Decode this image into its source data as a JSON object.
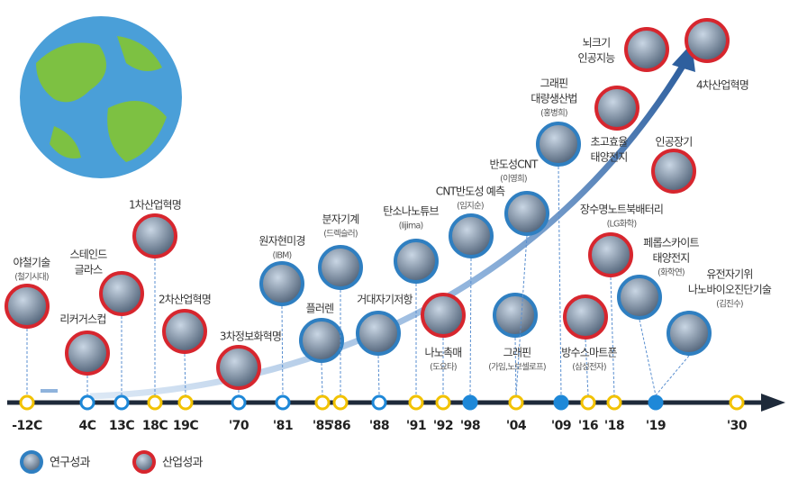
{
  "timeline": {
    "ticks": [
      "-12C",
      "4C",
      "13C",
      "18C",
      "19C",
      "'70",
      "'81",
      "'85",
      "'86",
      "'88",
      "'91",
      "'92",
      "'98",
      "'04",
      "'09",
      "'16",
      "'18",
      "'19",
      "'30"
    ]
  },
  "events": [
    {
      "label": [
        "야철기술"
      ],
      "sub": "(철기시대)"
    },
    {
      "label": [
        "리커거스컵"
      ]
    },
    {
      "label": [
        "스테인드",
        "글라스"
      ]
    },
    {
      "label": [
        "1차산업혁명"
      ]
    },
    {
      "label": [
        "2차산업혁명"
      ]
    },
    {
      "label": [
        "3차정보화혁명"
      ]
    },
    {
      "label": [
        "원자현미경"
      ],
      "sub": "(IBM)"
    },
    {
      "label": [
        "플러렌"
      ]
    },
    {
      "label": [
        "분자기계"
      ],
      "sub": "(드렉슬러)"
    },
    {
      "label": [
        "거대자기저항"
      ]
    },
    {
      "label": [
        "탄소나노튜브"
      ],
      "sub": "(Iijima)"
    },
    {
      "label": [
        "나노촉매"
      ],
      "sub": "(도요타)"
    },
    {
      "label": [
        "CNT반도성 예측"
      ],
      "sub": "(임지순)"
    },
    {
      "label": [
        "그래핀"
      ],
      "sub": "(가임,노보셀로프)"
    },
    {
      "label": [
        "반도성CNT"
      ],
      "sub": "(이영희)"
    },
    {
      "label": [
        "그래핀",
        "대량생산법"
      ],
      "sub": "(홍병희)"
    },
    {
      "label": [
        "방수스마트폰"
      ],
      "sub": "(삼성전자)"
    },
    {
      "label": [
        "장수명노트북배터리"
      ],
      "sub": "(LG화학)"
    },
    {
      "label": [
        "초고효율",
        "태양전지"
      ]
    },
    {
      "label": [
        "페롭스카이트",
        "태양전지"
      ],
      "sub": "(화학연)"
    },
    {
      "label": [
        "뇌크기",
        "인공지능"
      ]
    },
    {
      "label": [
        "인공장기"
      ]
    },
    {
      "label": [
        "4차산업혁명"
      ]
    },
    {
      "label": [
        "유전자기위",
        "나노바이오진단기술"
      ],
      "sub": "(김진수)"
    }
  ],
  "legend": [
    {
      "label": "연구성과"
    },
    {
      "label": "산업성과"
    }
  ]
}
